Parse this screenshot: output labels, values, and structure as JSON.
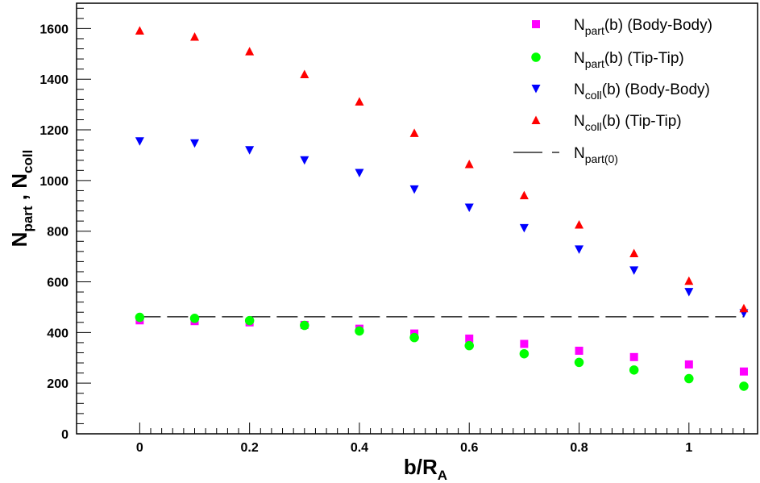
{
  "chart_data": {
    "type": "scatter",
    "xlabel": {
      "main": "b/R",
      "sub": "A"
    },
    "ylabel": {
      "a": "N",
      "a_sub": "part",
      "sep": " , ",
      "b": "N",
      "b_sub": "coll"
    },
    "xlim": [
      -0.115,
      1.125
    ],
    "ylim": [
      0,
      1700
    ],
    "xticks": [
      "0",
      "0.2",
      "0.4",
      "0.6",
      "0.8",
      "1"
    ],
    "yticks": [
      "0",
      "200",
      "400",
      "600",
      "800",
      "1000",
      "1200",
      "1400",
      "1600"
    ],
    "x": [
      0,
      0.1,
      0.2,
      0.3,
      0.4,
      0.5,
      0.6,
      0.7,
      0.8,
      0.9,
      1.0,
      1.1
    ],
    "series": [
      {
        "base": "N",
        "sub": "part",
        "rest": "(b) (Body-Body)",
        "marker": "square",
        "color": "#ff00ff",
        "values": [
          448,
          445,
          440,
          430,
          415,
          396,
          376,
          355,
          328,
          303,
          274,
          246
        ]
      },
      {
        "base": "N",
        "sub": "part",
        "rest": "(b) (Tip-Tip)",
        "marker": "circle",
        "color": "#00ff00",
        "values": [
          460,
          456,
          447,
          428,
          406,
          380,
          348,
          316,
          282,
          252,
          218,
          188
        ]
      },
      {
        "base": "N",
        "sub": "coll",
        "rest": "(b) (Body-Body)",
        "marker": "triangle-down",
        "color": "#0000ff",
        "values": [
          1155,
          1147,
          1120,
          1080,
          1030,
          965,
          893,
          812,
          728,
          645,
          560,
          476
        ]
      },
      {
        "base": "N",
        "sub": "coll",
        "rest": "(b) (Tip-Tip)",
        "marker": "triangle-up",
        "color": "#ff0000",
        "values": [
          1592,
          1568,
          1510,
          1420,
          1312,
          1188,
          1065,
          942,
          826,
          713,
          604,
          496
        ]
      }
    ],
    "reference_line": {
      "base": "N",
      "sub": "part(0)",
      "rest": "",
      "value": 462,
      "x_range": [
        0,
        1.1
      ],
      "style": "dashed",
      "color": "#000000"
    },
    "grid": false,
    "legend_position": "top-right"
  }
}
